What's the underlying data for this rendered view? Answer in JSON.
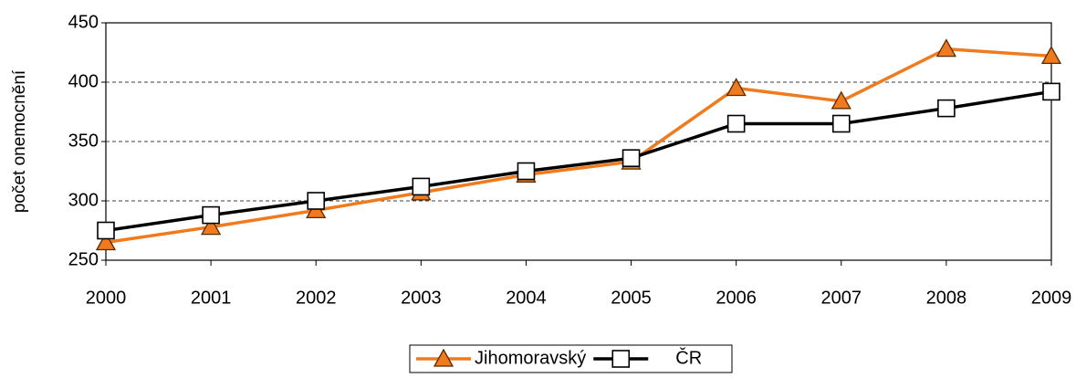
{
  "chart_data": {
    "type": "line",
    "y_label": "počet onemocnění",
    "categories": [
      "2000",
      "2001",
      "2002",
      "2003",
      "2004",
      "2005",
      "2006",
      "2007",
      "2008",
      "2009"
    ],
    "series": [
      {
        "name": "Jihomoravský",
        "color": "#f07a1e",
        "marker": "triangle",
        "values": [
          265,
          278,
          292,
          307,
          322,
          333,
          395,
          384,
          428,
          422
        ]
      },
      {
        "name": "ČR",
        "color": "#000000",
        "marker": "square",
        "values": [
          275,
          288,
          300,
          312,
          325,
          336,
          365,
          365,
          378,
          392
        ]
      }
    ],
    "ylim": [
      250,
      450
    ],
    "yticks": [
      250,
      300,
      350,
      400,
      450
    ],
    "grid": true,
    "legend": "bottom"
  }
}
